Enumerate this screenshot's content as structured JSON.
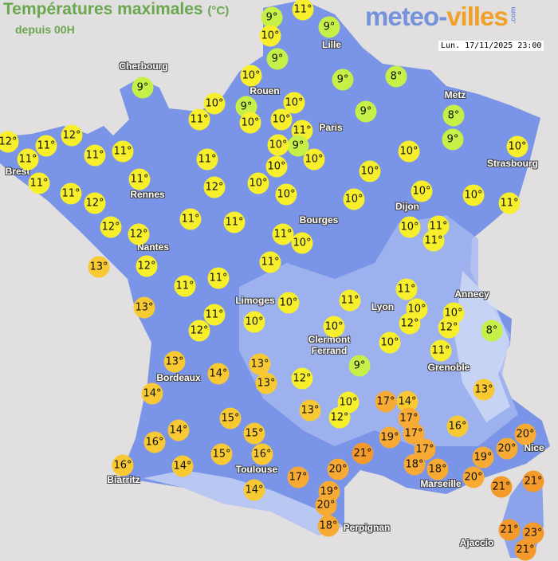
{
  "header": {
    "title": "Températures maximales",
    "unit": "(°C)",
    "subtitle": "depuis 00H",
    "logo": {
      "part1": "meteo-",
      "part2": "villes",
      "part3": ".com"
    },
    "datetime": "Lun. 17/11/2025 23:00"
  },
  "colors": {
    "land": "#7a95e8",
    "sea": "#e1dfdf",
    "title": "#6aa84f",
    "logo_blue": "#7592dc",
    "logo_orange": "#f0a128"
  },
  "temperature_colors": {
    "8-9": "#c6f048",
    "10-12": "#f8ef2c",
    "13-16": "#f9c934",
    "17-20": "#f8ab34",
    "21-23": "#f39a2a"
  },
  "cities": [
    "Cherbourg",
    "Rouen",
    "Lille",
    "Paris",
    "Metz",
    "Strasbourg",
    "Brest",
    "Rennes",
    "Dijon",
    "Bourges",
    "Nantes",
    "Limoges",
    "Annecy",
    "Lyon",
    "Clermont\nFerrand",
    "Grenoble",
    "Bordeaux",
    "Nice",
    "Toulouse",
    "Biarritz",
    "Marseille",
    "Perpignan",
    "Ajaccio"
  ],
  "stations": [
    {
      "temp": "9°"
    },
    {
      "temp": "11°"
    },
    {
      "temp": "10°"
    },
    {
      "temp": "9°"
    },
    {
      "temp": "9°"
    },
    {
      "temp": "10°"
    },
    {
      "temp": "9°"
    },
    {
      "temp": "8°"
    },
    {
      "temp": "9°"
    },
    {
      "temp": "10°"
    },
    {
      "temp": "9°"
    },
    {
      "temp": "11°"
    },
    {
      "temp": "10°"
    },
    {
      "temp": "10°"
    },
    {
      "temp": "10°"
    },
    {
      "temp": "11°"
    },
    {
      "temp": "9°"
    },
    {
      "temp": "10°"
    },
    {
      "temp": "10°"
    },
    {
      "temp": "9°"
    },
    {
      "temp": "8°"
    },
    {
      "temp": "9°"
    },
    {
      "temp": "10°"
    },
    {
      "temp": "10°"
    },
    {
      "temp": "12°"
    },
    {
      "temp": "12°"
    },
    {
      "temp": "11°"
    },
    {
      "temp": "11°"
    },
    {
      "temp": "11°"
    },
    {
      "temp": "11°"
    },
    {
      "temp": "11°"
    },
    {
      "temp": "10°"
    },
    {
      "temp": "11°"
    },
    {
      "temp": "12°"
    },
    {
      "temp": "10°"
    },
    {
      "temp": "10°"
    },
    {
      "temp": "10°"
    },
    {
      "temp": "11°"
    },
    {
      "temp": "11°"
    },
    {
      "temp": "12°"
    },
    {
      "temp": "10°"
    },
    {
      "temp": "10°"
    },
    {
      "temp": "11°"
    },
    {
      "temp": "10°"
    },
    {
      "temp": "12°"
    },
    {
      "temp": "12°"
    },
    {
      "temp": "11°"
    },
    {
      "temp": "11°"
    },
    {
      "temp": "11°"
    },
    {
      "temp": "10°"
    },
    {
      "temp": "10°"
    },
    {
      "temp": "11°"
    },
    {
      "temp": "11°"
    },
    {
      "temp": "13°"
    },
    {
      "temp": "12°"
    },
    {
      "temp": "11°"
    },
    {
      "temp": "11°"
    },
    {
      "temp": "11°"
    },
    {
      "temp": "13°"
    },
    {
      "temp": "11°"
    },
    {
      "temp": "12°"
    },
    {
      "temp": "10°"
    },
    {
      "temp": "10°"
    },
    {
      "temp": "11°"
    },
    {
      "temp": "11°"
    },
    {
      "temp": "10°"
    },
    {
      "temp": "12°"
    },
    {
      "temp": "10°"
    },
    {
      "temp": "12°"
    },
    {
      "temp": "8°"
    },
    {
      "temp": "10°"
    },
    {
      "temp": "10°"
    },
    {
      "temp": "11°"
    },
    {
      "temp": "13°"
    },
    {
      "temp": "14°"
    },
    {
      "temp": "13°"
    },
    {
      "temp": "13°"
    },
    {
      "temp": "12°"
    },
    {
      "temp": "9°"
    },
    {
      "temp": "14°"
    },
    {
      "temp": "15°"
    },
    {
      "temp": "13°"
    },
    {
      "temp": "10°"
    },
    {
      "temp": "12°"
    },
    {
      "temp": "17°"
    },
    {
      "temp": "14°"
    },
    {
      "temp": "17°"
    },
    {
      "temp": "13°"
    },
    {
      "temp": "16°"
    },
    {
      "temp": "14°"
    },
    {
      "temp": "16°"
    },
    {
      "temp": "15°"
    },
    {
      "temp": "19°"
    },
    {
      "temp": "17°"
    },
    {
      "temp": "17°"
    },
    {
      "temp": "21°"
    },
    {
      "temp": "16°"
    },
    {
      "temp": "14°"
    },
    {
      "temp": "15°"
    },
    {
      "temp": "16°"
    },
    {
      "temp": "20°"
    },
    {
      "temp": "20°"
    },
    {
      "temp": "19°"
    },
    {
      "temp": "18°"
    },
    {
      "temp": "18°"
    },
    {
      "temp": "17°"
    },
    {
      "temp": "20°"
    },
    {
      "temp": "20°"
    },
    {
      "temp": "21°"
    },
    {
      "temp": "21°"
    },
    {
      "temp": "14°"
    },
    {
      "temp": "19°"
    },
    {
      "temp": "20°"
    },
    {
      "temp": "18°"
    },
    {
      "temp": "21°"
    },
    {
      "temp": "23°"
    },
    {
      "temp": "21°"
    }
  ]
}
